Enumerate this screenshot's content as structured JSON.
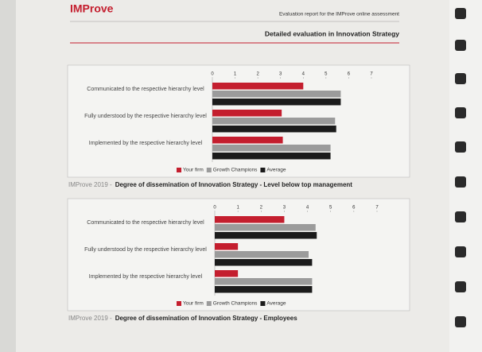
{
  "header": {
    "logo": "IMProve",
    "report": "Evaluation report for the IMProve online assessment",
    "section": "Detailed evaluation in Innovation Strategy"
  },
  "chart_data": [
    {
      "type": "barh",
      "subtitle": "IMProve 2019 -",
      "title": "Degree of dissemination of Innovation Strategy  -  Level below top management",
      "categories": [
        "Communicated to the respective hierarchy level",
        "Fully understood by the respective hierarchy level",
        "Implemented by the respective hierarchy level"
      ],
      "series": [
        {
          "name": "Your firm",
          "color": "#c41e2e",
          "values": [
            4.0,
            3.05,
            3.1
          ]
        },
        {
          "name": "Growth Champions",
          "color": "#9b9b9b",
          "values": [
            5.65,
            5.4,
            5.2
          ]
        },
        {
          "name": "Average",
          "color": "#1b1b1b",
          "values": [
            5.65,
            5.45,
            5.2
          ]
        }
      ],
      "xlim": [
        0,
        7
      ],
      "xticks": [
        0,
        1,
        2,
        3,
        4,
        5,
        6,
        7
      ],
      "legend": "bottom"
    },
    {
      "type": "barh",
      "subtitle": "IMProve 2019 -",
      "title": "Degree of dissemination of Innovation Strategy  -  Employees",
      "categories": [
        "Communicated to the respective hierarchy level",
        "Fully understood by the respective hierarchy level",
        "Implemented by the respective hierarchy level"
      ],
      "series": [
        {
          "name": "Your firm",
          "color": "#c41e2e",
          "values": [
            3.0,
            1.0,
            1.0
          ]
        },
        {
          "name": "Growth Champions",
          "color": "#9b9b9b",
          "values": [
            4.35,
            4.05,
            4.2
          ]
        },
        {
          "name": "Average",
          "color": "#1b1b1b",
          "values": [
            4.4,
            4.2,
            4.2
          ]
        }
      ],
      "xlim": [
        0,
        7
      ],
      "xticks": [
        0,
        1,
        2,
        3,
        4,
        5,
        6,
        7
      ],
      "legend": "bottom"
    }
  ]
}
